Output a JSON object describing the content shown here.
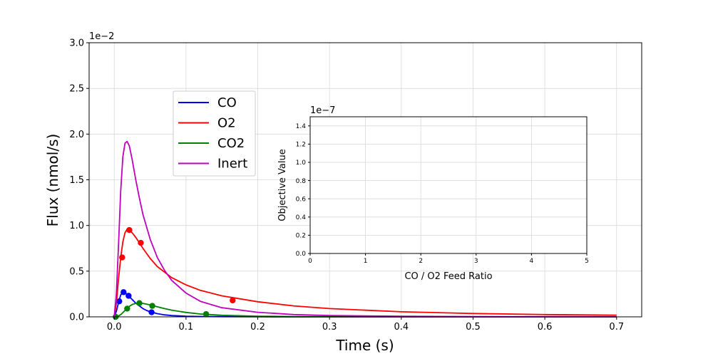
{
  "chart_data": [
    {
      "type": "line",
      "xlabel": "Time (s)",
      "ylabel": "Flux (nmol/s)",
      "xlim": [
        -0.035,
        0.735
      ],
      "ylim": [
        0,
        3.0
      ],
      "y_scale_label": "1e−2",
      "x_ticks": [
        0.0,
        0.1,
        0.2,
        0.3,
        0.4,
        0.5,
        0.6,
        0.7
      ],
      "x_tick_labels": [
        "0.0",
        "0.1",
        "0.2",
        "0.3",
        "0.4",
        "0.5",
        "0.6",
        "0.7"
      ],
      "y_ticks": [
        0.0,
        0.5,
        1.0,
        1.5,
        2.0,
        2.5,
        3.0
      ],
      "y_tick_labels": [
        "0.0",
        "0.5",
        "1.0",
        "1.5",
        "2.0",
        "2.5",
        "3.0"
      ],
      "grid": true,
      "legend_position": "upper-left",
      "series": [
        {
          "name": "CO",
          "color": "#0000ff",
          "x": [
            0.0,
            0.003,
            0.006,
            0.009,
            0.012,
            0.015,
            0.018,
            0.021,
            0.025,
            0.03,
            0.035,
            0.04,
            0.045,
            0.05,
            0.06,
            0.07,
            0.08,
            0.1,
            0.12,
            0.15,
            0.2,
            0.3,
            0.4,
            0.5,
            0.7
          ],
          "y": [
            0.0,
            0.06,
            0.16,
            0.24,
            0.27,
            0.265,
            0.245,
            0.22,
            0.19,
            0.15,
            0.12,
            0.09,
            0.07,
            0.055,
            0.035,
            0.022,
            0.014,
            0.007,
            0.004,
            0.002,
            0.001,
            0.0,
            0.0,
            0.0,
            0.0
          ],
          "markers_x": [
            0.007,
            0.013,
            0.02,
            0.052
          ],
          "markers_y": [
            0.17,
            0.27,
            0.23,
            0.05
          ]
        },
        {
          "name": "O2",
          "color": "#ff0000",
          "x": [
            0.0,
            0.003,
            0.006,
            0.009,
            0.012,
            0.015,
            0.018,
            0.021,
            0.025,
            0.03,
            0.035,
            0.04,
            0.05,
            0.06,
            0.08,
            0.1,
            0.12,
            0.15,
            0.2,
            0.25,
            0.3,
            0.4,
            0.5,
            0.6,
            0.7
          ],
          "y": [
            0.0,
            0.15,
            0.42,
            0.65,
            0.82,
            0.92,
            0.96,
            0.95,
            0.92,
            0.87,
            0.81,
            0.75,
            0.64,
            0.55,
            0.43,
            0.35,
            0.29,
            0.23,
            0.165,
            0.12,
            0.09,
            0.055,
            0.037,
            0.025,
            0.018
          ],
          "markers_x": [
            0.011,
            0.021,
            0.037,
            0.165
          ],
          "markers_y": [
            0.65,
            0.95,
            0.81,
            0.18
          ]
        },
        {
          "name": "CO2",
          "color": "#008000",
          "x": [
            0.0,
            0.005,
            0.01,
            0.015,
            0.02,
            0.025,
            0.03,
            0.035,
            0.04,
            0.05,
            0.06,
            0.07,
            0.08,
            0.1,
            0.12,
            0.15,
            0.2,
            0.25,
            0.3,
            0.4,
            0.5,
            0.7
          ],
          "y": [
            0.0,
            0.005,
            0.03,
            0.07,
            0.11,
            0.135,
            0.148,
            0.15,
            0.147,
            0.13,
            0.11,
            0.09,
            0.073,
            0.048,
            0.031,
            0.017,
            0.007,
            0.003,
            0.002,
            0.001,
            0.0,
            0.0
          ],
          "markers_x": [
            0.002,
            0.018,
            0.035,
            0.053,
            0.128
          ],
          "markers_y": [
            0.0,
            0.09,
            0.15,
            0.12,
            0.03
          ]
        },
        {
          "name": "Inert",
          "color": "#bf00bf",
          "x": [
            0.0,
            0.003,
            0.006,
            0.009,
            0.012,
            0.015,
            0.018,
            0.021,
            0.025,
            0.03,
            0.035,
            0.04,
            0.05,
            0.06,
            0.07,
            0.08,
            0.1,
            0.12,
            0.15,
            0.2,
            0.25,
            0.3,
            0.4,
            0.5,
            0.7
          ],
          "y": [
            0.0,
            0.25,
            0.8,
            1.38,
            1.75,
            1.9,
            1.92,
            1.87,
            1.72,
            1.5,
            1.3,
            1.12,
            0.85,
            0.65,
            0.51,
            0.4,
            0.26,
            0.17,
            0.1,
            0.05,
            0.025,
            0.015,
            0.006,
            0.003,
            0.0
          ]
        }
      ]
    },
    {
      "type": "line",
      "xlabel": "CO / O2 Feed Ratio",
      "ylabel": "Objective Value",
      "xlim": [
        0,
        5
      ],
      "ylim": [
        0,
        1.5
      ],
      "y_scale_label": "1e−7",
      "x_ticks": [
        0,
        1,
        2,
        3,
        4,
        5
      ],
      "x_tick_labels": [
        "0",
        "1",
        "2",
        "3",
        "4",
        "5"
      ],
      "y_ticks": [
        0.0,
        0.2,
        0.4,
        0.6,
        0.8,
        1.0,
        1.2,
        1.4
      ],
      "y_tick_labels": [
        "0.0",
        "0.2",
        "0.4",
        "0.6",
        "0.8",
        "1.0",
        "1.2",
        "1.4"
      ],
      "grid": true,
      "series": []
    }
  ]
}
